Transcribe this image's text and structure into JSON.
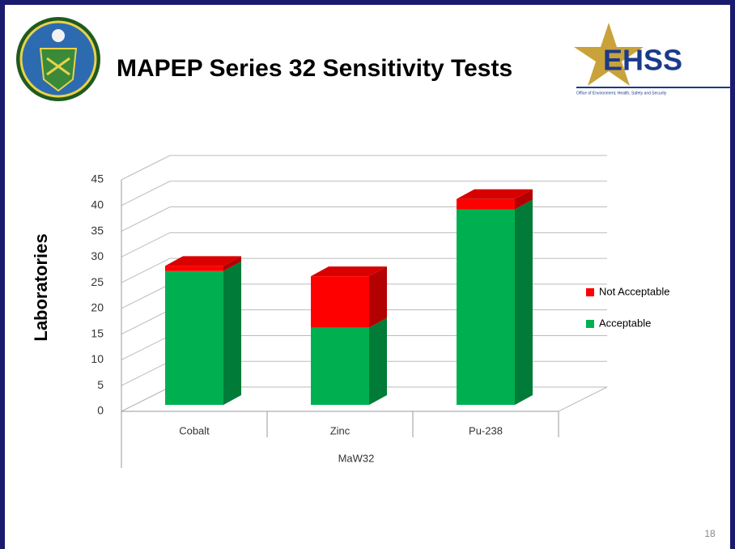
{
  "chart_data": {
    "type": "bar3d_stacked",
    "title": "MAPEP Series 32 Sensitivity Tests",
    "x_label": "MaW32",
    "y_label": "Laboratories",
    "categories": [
      "Cobalt",
      "Zinc",
      "Pu-238"
    ],
    "series": [
      {
        "name": "Acceptable",
        "color": "#00b050",
        "values": [
          26,
          15,
          38
        ]
      },
      {
        "name": "Not Acceptable",
        "color": "#ff0000",
        "values": [
          1,
          10,
          2
        ]
      }
    ],
    "ylim": [
      0,
      45
    ],
    "yticks": [
      0,
      5,
      10,
      15,
      20,
      25,
      30,
      35,
      40,
      45
    ],
    "grid": true,
    "legend": "right"
  },
  "logo": {
    "text": "EHSS",
    "subtitle": "Office of Environment, Health, Safety and Security"
  },
  "page_number": 18
}
